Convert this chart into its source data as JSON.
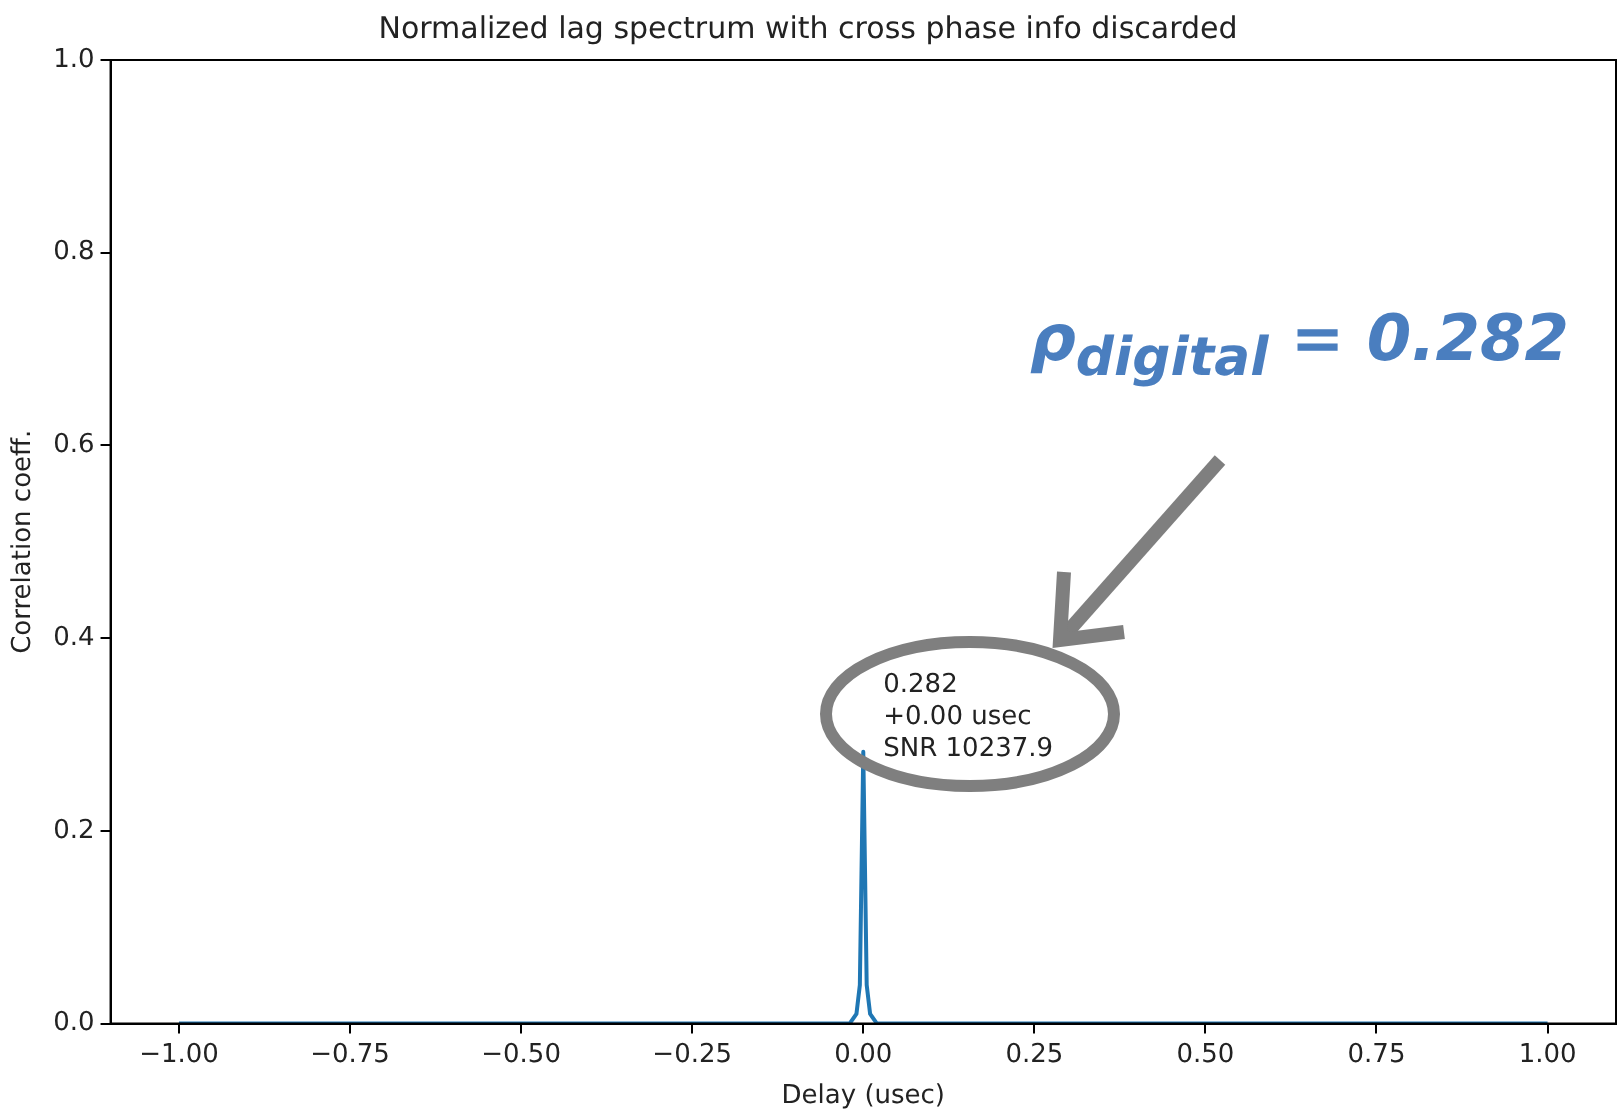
{
  "chart_data": {
    "type": "line",
    "title": "Normalized lag spectrum with cross phase info discarded",
    "xlabel": "Delay (usec)",
    "ylabel": "Correlation coeff.",
    "x": [
      -1,
      -0.02,
      -0.01,
      -0.005,
      0,
      0.005,
      0.01,
      0.02,
      1
    ],
    "series": [
      {
        "color": "#1f77b4",
        "values": [
          0,
          0,
          0.01,
          0.04,
          0.282,
          0.04,
          0.01,
          0,
          0
        ]
      }
    ],
    "xlim": [
      -1.1,
      1.1
    ],
    "xticks": [
      {
        "value": -1,
        "label": "−1.00"
      },
      {
        "value": -0.75,
        "label": "−0.75"
      },
      {
        "value": -0.5,
        "label": "−0.50"
      },
      {
        "value": -0.25,
        "label": "−0.25"
      },
      {
        "value": 0,
        "label": "0.00"
      },
      {
        "value": 0.25,
        "label": "0.25"
      },
      {
        "value": 0.5,
        "label": "0.50"
      },
      {
        "value": 0.75,
        "label": "0.75"
      },
      {
        "value": 1,
        "label": "1.00"
      }
    ],
    "ylim": [
      0,
      1
    ],
    "yticks": [
      {
        "value": 0,
        "label": "0.0"
      },
      {
        "value": 0.2,
        "label": "0.2"
      },
      {
        "value": 0.4,
        "label": "0.4"
      },
      {
        "value": 0.6,
        "label": "0.6"
      },
      {
        "value": 0.8,
        "label": "0.8"
      },
      {
        "value": 1,
        "label": "1.0"
      }
    ],
    "grid": false,
    "legend": false,
    "marker": "none",
    "line_style": "solid",
    "annotations": [
      {
        "text": "0.282\n+0.00 usec\nSNR 10237.9",
        "x": 0,
        "y": 0.282
      },
      "ρ$_{digital}$ = 0.282"
    ]
  }
}
